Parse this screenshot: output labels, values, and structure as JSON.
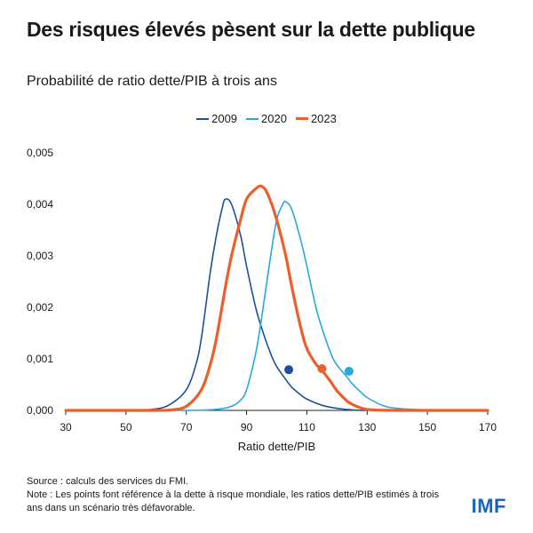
{
  "title": "Des risques élevés pèsent sur la dette publique",
  "subtitle": "Probabilité de ratio dette/PIB à trois ans",
  "footer": {
    "source": "Source : calculs des services du FMI.",
    "note": "Note : Les points font référence à la dette à risque mondiale, les ratios dette/PIB estimés à trois ans dans un scénario très défavorable."
  },
  "logo": "IMF",
  "chart_data": {
    "type": "line",
    "xlabel": "Ratio dette/PIB",
    "ylabel": "",
    "xlim": [
      30,
      170
    ],
    "ylim": [
      0,
      0.005
    ],
    "x_ticks": [
      30,
      50,
      70,
      90,
      110,
      130,
      150,
      170
    ],
    "y_ticks": [
      "0,000",
      "0,001",
      "0,002",
      "0,003",
      "0,004",
      "0,005"
    ],
    "y_tick_values": [
      0,
      0.001,
      0.002,
      0.003,
      0.004,
      0.005
    ],
    "grid": false,
    "legend_position": "top-center",
    "series": [
      {
        "name": "2009",
        "color": "#1f4e9c",
        "x": [
          30,
          50,
          60,
          65,
          70,
          73,
          75,
          78,
          80,
          82,
          83,
          85,
          88,
          90,
          93,
          95,
          98,
          100,
          103,
          105,
          108,
          110,
          115,
          120,
          125,
          130,
          140,
          150,
          170
        ],
        "y": [
          0,
          0,
          3e-05,
          0.00013,
          0.0004,
          0.00085,
          0.0014,
          0.0027,
          0.0034,
          0.00395,
          0.0041,
          0.004,
          0.0034,
          0.0028,
          0.002,
          0.0016,
          0.0011,
          0.00085,
          0.0006,
          0.00045,
          0.0003,
          0.00022,
          0.0001,
          4e-05,
          1e-05,
          0,
          0,
          0,
          0
        ],
        "risk_point": {
          "x": 104,
          "y": 0.00079
        }
      },
      {
        "name": "2020",
        "color": "#29a8e0",
        "x": [
          30,
          50,
          70,
          80,
          85,
          88,
          90,
          93,
          95,
          98,
          100,
          102,
          103,
          105,
          108,
          110,
          113,
          115,
          118,
          120,
          123,
          125,
          128,
          130,
          135,
          140,
          150,
          170
        ],
        "y": [
          0,
          0,
          0,
          2e-05,
          8e-05,
          0.0002,
          0.0004,
          0.0011,
          0.0018,
          0.003,
          0.0037,
          0.004,
          0.00405,
          0.0039,
          0.0033,
          0.0028,
          0.002,
          0.0016,
          0.0011,
          0.00088,
          0.00067,
          0.00052,
          0.00035,
          0.00025,
          0.0001,
          4e-05,
          1e-05,
          0
        ],
        "risk_point": {
          "x": 124,
          "y": 0.00076
        }
      },
      {
        "name": "2023",
        "color": "#ec5f2b",
        "x": [
          30,
          50,
          60,
          65,
          70,
          75,
          78,
          80,
          83,
          85,
          88,
          90,
          93,
          95,
          97,
          100,
          103,
          105,
          108,
          110,
          113,
          115,
          118,
          120,
          123,
          125,
          130,
          140,
          150,
          170
        ],
        "y": [
          0,
          0,
          0,
          1e-05,
          8e-05,
          0.0004,
          0.0009,
          0.0014,
          0.0024,
          0.003,
          0.0037,
          0.0041,
          0.0043,
          0.00435,
          0.0042,
          0.0037,
          0.003,
          0.0024,
          0.0016,
          0.0012,
          0.0009,
          0.00078,
          0.00055,
          0.00038,
          0.0002,
          0.00012,
          2e-05,
          0,
          0,
          0
        ],
        "risk_point": {
          "x": 115,
          "y": 0.00081
        }
      }
    ]
  }
}
